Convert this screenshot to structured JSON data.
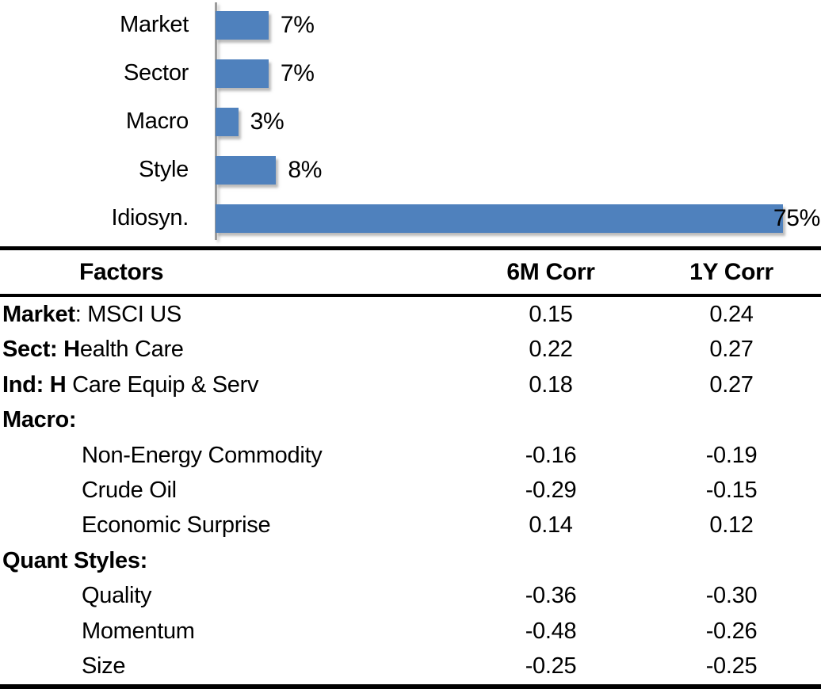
{
  "chart_data": [
    {
      "type": "bar",
      "orientation": "horizontal",
      "title": "",
      "categories": [
        "Market",
        "Sector",
        "Macro",
        "Style",
        "Idiosyn."
      ],
      "values": [
        7,
        7,
        3,
        8,
        75
      ],
      "value_labels": [
        "7%",
        "7%",
        "3%",
        "8%",
        "75%"
      ],
      "xlim": [
        0,
        80
      ],
      "grid": false,
      "legend": false,
      "bar_color": "#4F81BD",
      "axis_color": "#9c9c9c",
      "last_label_inside": true
    },
    {
      "type": "table",
      "headers": [
        "Factors",
        "6M Corr",
        "1Y Corr"
      ],
      "rows": [
        {
          "label": "Market: MSCI US",
          "bold_prefix": "Market",
          "indent": false,
          "corr_6m": "0.15",
          "corr_1y": "0.24"
        },
        {
          "label": "Sect: Health Care",
          "bold_prefix": "Sect: H",
          "indent": false,
          "corr_6m": "0.22",
          "corr_1y": "0.27"
        },
        {
          "label": "Ind: H Care Equip & Serv",
          "bold_prefix": "Ind: H",
          "indent": false,
          "corr_6m": "0.18",
          "corr_1y": "0.27"
        },
        {
          "label": "Macro:",
          "bold_prefix": "Macro:",
          "indent": false,
          "corr_6m": "",
          "corr_1y": ""
        },
        {
          "label": "Non-Energy Commodity",
          "bold_prefix": "",
          "indent": true,
          "corr_6m": "-0.16",
          "corr_1y": "-0.19"
        },
        {
          "label": "Crude Oil",
          "bold_prefix": "",
          "indent": true,
          "corr_6m": "-0.29",
          "corr_1y": "-0.15"
        },
        {
          "label": "Economic Surprise",
          "bold_prefix": "",
          "indent": true,
          "corr_6m": "0.14",
          "corr_1y": "0.12"
        },
        {
          "label": "Quant Styles:",
          "bold_prefix": "Quant Styles:",
          "indent": false,
          "corr_6m": "",
          "corr_1y": ""
        },
        {
          "label": "Quality",
          "bold_prefix": "",
          "indent": true,
          "corr_6m": "-0.36",
          "corr_1y": "-0.30"
        },
        {
          "label": "Momentum",
          "bold_prefix": "",
          "indent": true,
          "corr_6m": "-0.48",
          "corr_1y": "-0.26"
        },
        {
          "label": "Size",
          "bold_prefix": "",
          "indent": true,
          "corr_6m": "-0.25",
          "corr_1y": "-0.25"
        }
      ]
    }
  ],
  "colors": {
    "bar": "#4F81BD",
    "axis": "#9c9c9c",
    "border": "#000000",
    "text": "#000000"
  }
}
